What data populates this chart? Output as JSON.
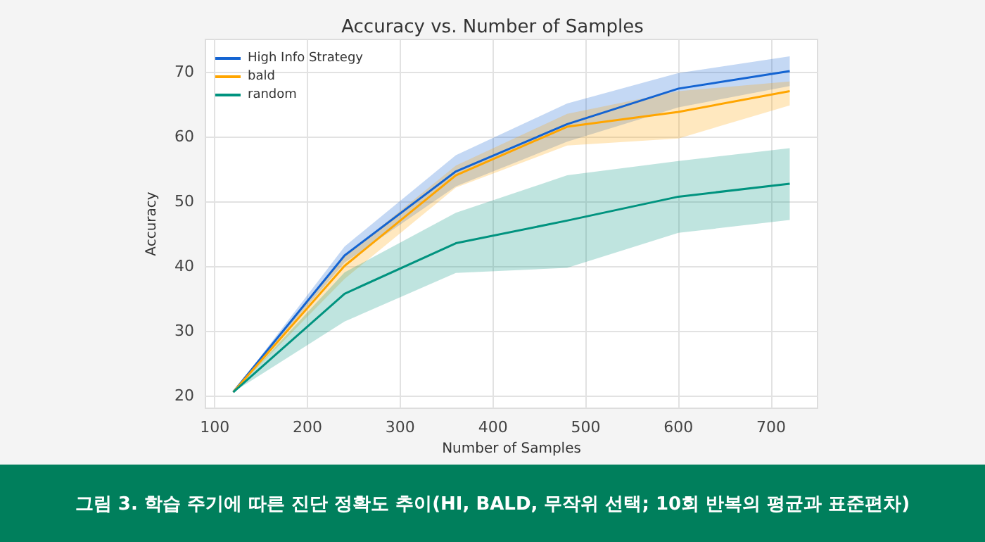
{
  "chart_data": {
    "type": "line",
    "title": "Accuracy vs. Number of Samples",
    "xlabel": "Number of Samples",
    "ylabel": "Accuracy",
    "x": [
      120,
      240,
      360,
      480,
      600,
      720
    ],
    "series": [
      {
        "name": "High Info Strategy",
        "color": "#1464d2",
        "values": [
          20.5,
          41.6,
          54.6,
          61.9,
          67.4,
          70.1
        ],
        "lower": [
          20.5,
          40.5,
          52.3,
          59.2,
          64.5,
          67.8
        ],
        "upper": [
          20.5,
          43,
          57.1,
          65.1,
          69.8,
          72.4
        ]
      },
      {
        "name": "bald",
        "color": "#ffa500",
        "values": [
          20.5,
          40,
          54,
          61.5,
          63.8,
          67
        ],
        "lower": [
          20.5,
          38,
          52.1,
          58.6,
          59.7,
          64.8
        ],
        "upper": [
          20.5,
          41.5,
          55.5,
          63.5,
          67,
          68.5
        ]
      },
      {
        "name": "random",
        "color": "#00937f",
        "values": [
          20.5,
          35.7,
          43.5,
          47,
          50.7,
          52.7
        ],
        "lower": [
          20.5,
          31.4,
          38.9,
          39.7,
          45.1,
          47.1
        ],
        "upper": [
          20.5,
          39,
          48.2,
          54,
          56.2,
          58.2
        ]
      }
    ],
    "xlim": [
      90,
      750
    ],
    "xticks": [
      100,
      200,
      300,
      400,
      500,
      600,
      700
    ],
    "ylim": [
      18,
      75
    ],
    "yticks": [
      20,
      30,
      40,
      50,
      60,
      70
    ],
    "grid": true,
    "legend": "top left",
    "marker": "none",
    "line_style": "solid",
    "annotations": [
      "그림 3. 학습 주기에 따른 진단 정확도 추이(HI, BALD, 무작위 선택; 10회 반복의 평균과 표준편차)"
    ]
  }
}
